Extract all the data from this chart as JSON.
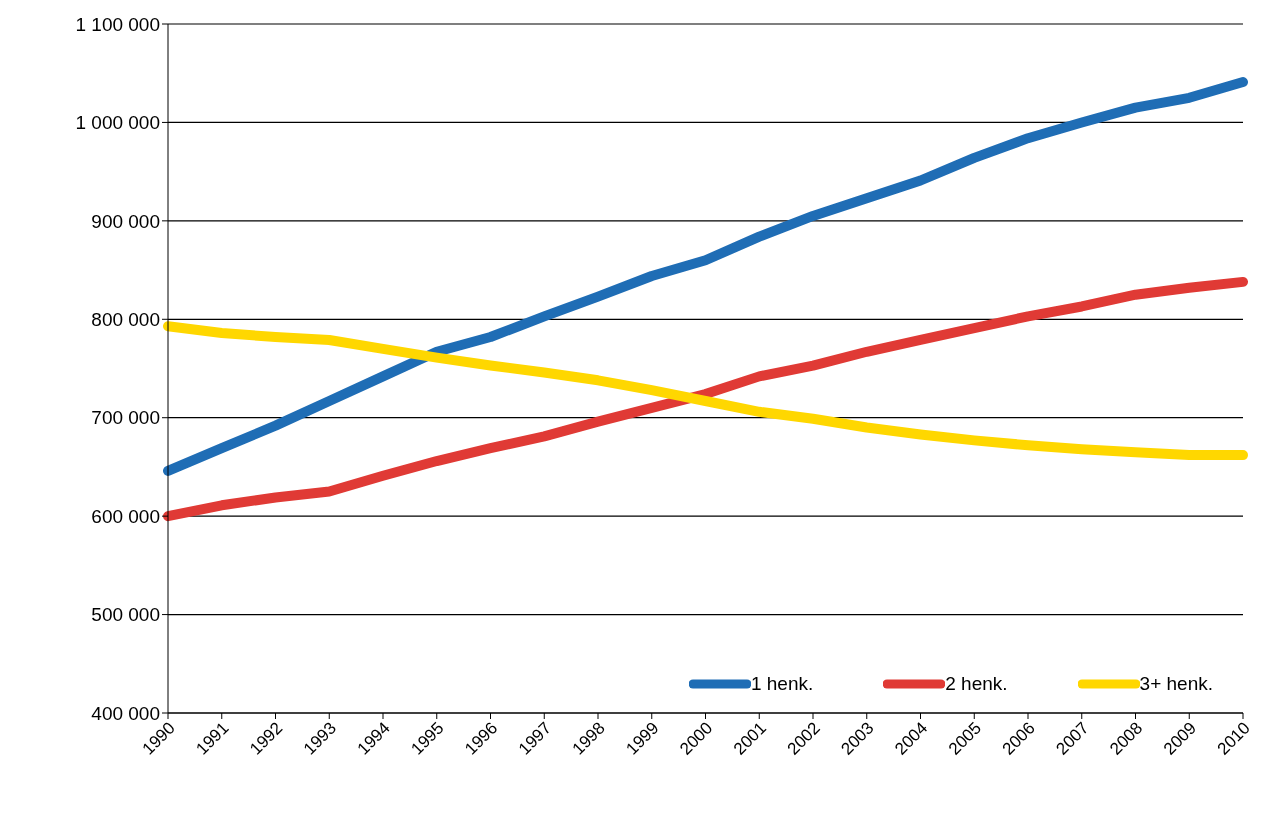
{
  "chart_data": {
    "type": "line",
    "categories": [
      "1990",
      "1991",
      "1992",
      "1993",
      "1994",
      "1995",
      "1996",
      "1997",
      "1998",
      "1999",
      "2000",
      "2001",
      "2002",
      "2003",
      "2004",
      "2005",
      "2006",
      "2007",
      "2008",
      "2009",
      "2010"
    ],
    "series": [
      {
        "name": "1 henk.",
        "color": "#1f6db5",
        "values": [
          646000,
          669000,
          692000,
          717000,
          742000,
          767000,
          782000,
          803000,
          823000,
          844000,
          860000,
          884000,
          905000,
          923000,
          941000,
          964000,
          984000,
          1000000,
          1015000,
          1025000,
          1041000
        ]
      },
      {
        "name": "2 henk.",
        "color": "#e03a35",
        "values": [
          600000,
          611000,
          619000,
          625000,
          641000,
          656000,
          669000,
          681000,
          696000,
          710000,
          724000,
          742000,
          753000,
          767000,
          779000,
          791000,
          803000,
          813000,
          825000,
          832000,
          838000
        ]
      },
      {
        "name": "3+ henk.",
        "color": "#ffd700",
        "values": [
          793000,
          786000,
          782000,
          779000,
          770000,
          761000,
          753000,
          746000,
          738000,
          728000,
          717000,
          706000,
          699000,
          690000,
          683000,
          677000,
          672000,
          668000,
          665000,
          662000,
          662000
        ]
      }
    ],
    "ylim": [
      400000,
      1100000
    ],
    "yticks": [
      {
        "value": 400000,
        "label": "400 000"
      },
      {
        "value": 500000,
        "label": "500 000"
      },
      {
        "value": 600000,
        "label": "600 000"
      },
      {
        "value": 700000,
        "label": "700 000"
      },
      {
        "value": 800000,
        "label": "800 000"
      },
      {
        "value": 900000,
        "label": "900 000"
      },
      {
        "value": 1000000,
        "label": "1 000 000"
      },
      {
        "value": 1100000,
        "label": "1 100 000"
      }
    ],
    "grid": "y",
    "legend": "bottom right",
    "marker": "none",
    "line_style": "solid"
  }
}
